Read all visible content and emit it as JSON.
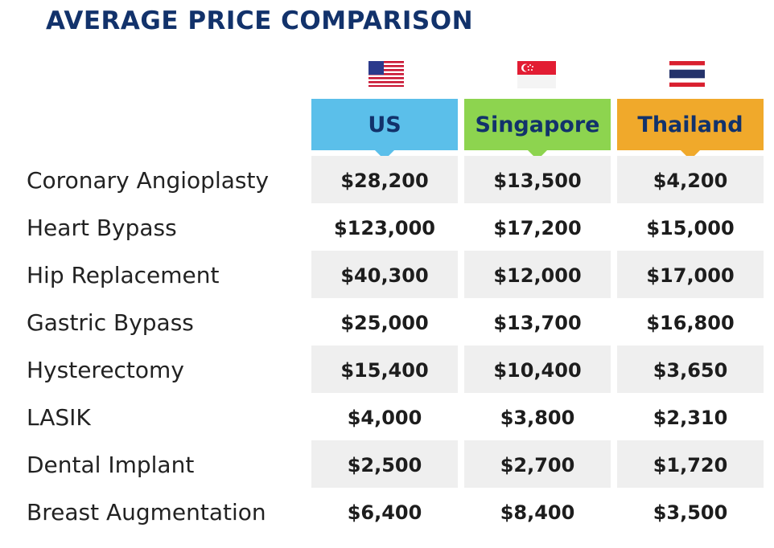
{
  "chart_data": {
    "type": "table",
    "title": "AVERAGE PRICE COMPARISON",
    "columns": [
      {
        "name": "US",
        "color": "#5bbfea",
        "flag": "us-flag-icon"
      },
      {
        "name": "Singapore",
        "color": "#8dd44f",
        "flag": "singapore-flag-icon"
      },
      {
        "name": "Thailand",
        "color": "#f0a92b",
        "flag": "thailand-flag-icon"
      }
    ],
    "rows": [
      {
        "procedure": "Coronary Angioplasty",
        "values": [
          "$28,200",
          "$13,500",
          "$4,200"
        ]
      },
      {
        "procedure": "Heart Bypass",
        "values": [
          "$123,000",
          "$17,200",
          "$15,000"
        ]
      },
      {
        "procedure": "Hip Replacement",
        "values": [
          "$40,300",
          "$12,000",
          "$17,000"
        ]
      },
      {
        "procedure": "Gastric Bypass",
        "values": [
          "$25,000",
          "$13,700",
          "$16,800"
        ]
      },
      {
        "procedure": "Hysterectomy",
        "values": [
          "$15,400",
          "$10,400",
          "$3,650"
        ]
      },
      {
        "procedure": "LASIK",
        "values": [
          "$4,000",
          "$3,800",
          "$2,310"
        ]
      },
      {
        "procedure": "Dental Implant",
        "values": [
          "$2,500",
          "$2,700",
          "$1,720"
        ]
      },
      {
        "procedure": "Breast Augmentation",
        "values": [
          "$6,400",
          "$8,400",
          "$3,500"
        ]
      }
    ]
  }
}
